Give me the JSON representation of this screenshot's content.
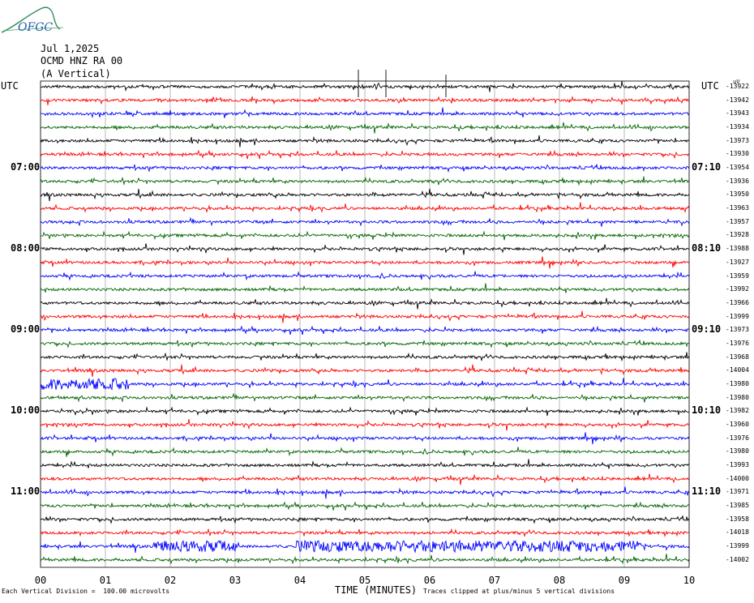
{
  "header": {
    "logo_text": "OFGC",
    "date": "Jul 1,2025",
    "station": "OCMD HNZ RA 00",
    "component": "(A Vertical)",
    "utc_left": "UTC",
    "utc_right": "UTC",
    "units_label": "uV"
  },
  "footer": {
    "scale_note": "Each Vertical Division =  100.00 microvolts",
    "clip_note": "Traces clipped at plus/minus 5 vertical divisions"
  },
  "chart_data": {
    "type": "line",
    "title": "",
    "xlabel": "TIME (MINUTES)",
    "x_ticks": [
      "00",
      "01",
      "02",
      "03",
      "04",
      "05",
      "06",
      "07",
      "08",
      "09",
      "10"
    ],
    "xlim": [
      0,
      10
    ],
    "grid": true,
    "left_time_labels": [
      "07:00",
      "08:00",
      "09:00",
      "10:00",
      "11:00"
    ],
    "right_time_labels": [
      "07:10",
      "08:10",
      "09:10",
      "10:10",
      "11:10"
    ],
    "trace_colors": [
      "#000000",
      "#ff0000",
      "#0000ff",
      "#006400"
    ],
    "trace_offsets": [
      "-13922",
      "-13942",
      "-13943",
      "-13934",
      "-13973",
      "-13930",
      "-13954",
      "-13936",
      "-13950",
      "-13963",
      "-13957",
      "-13928",
      "-13988",
      "-13927",
      "-13959",
      "-13992",
      "-13966",
      "-13999",
      "-13973",
      "-13976",
      "-13968",
      "-14004",
      "-13980",
      "-13980",
      "-13982",
      "-13960",
      "-13976",
      "-13980",
      "-13993",
      "-14000",
      "-13971",
      "-13985",
      "-13958",
      "-14018",
      "-13999",
      "-14002"
    ],
    "trace_count": 36,
    "high_activity_bands": [
      {
        "trace": 22,
        "x_start_min": 0.0,
        "x_end_min": 1.35
      },
      {
        "trace": 34,
        "x_start_min": 1.75,
        "x_end_min": 3.0
      },
      {
        "trace": 34,
        "x_start_min": 3.95,
        "x_end_min": 9.25
      }
    ]
  }
}
